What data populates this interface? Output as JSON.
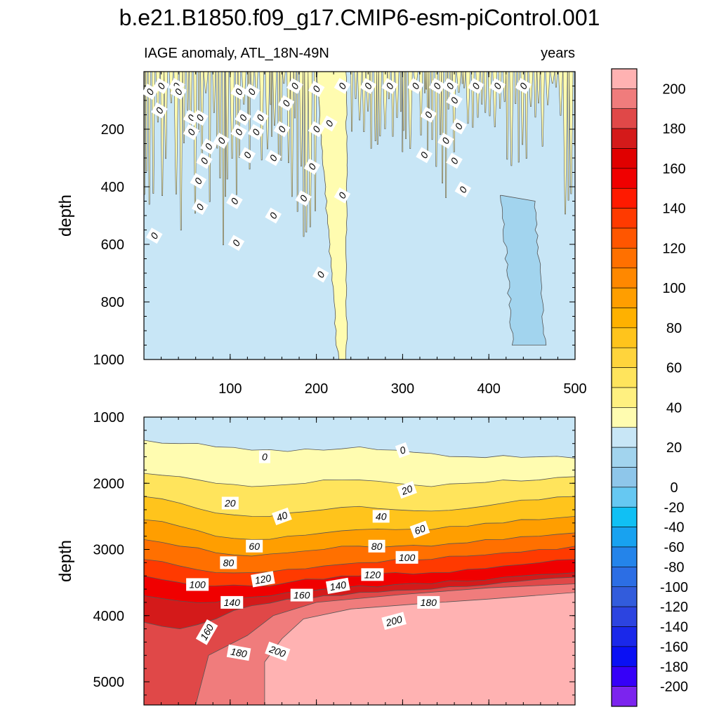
{
  "chart_data": {
    "type": "heatmap",
    "title": "b.e21.B1850.f09_g17.CMIP6-esm-piControl.001",
    "panels": [
      {
        "name": "upper",
        "subtitle_left": "IAGE anomaly, ATL_18N-49N",
        "subtitle_right": "years",
        "xlabel": "",
        "ylabel": "depth",
        "xlim": [
          0,
          500
        ],
        "ylim": [
          1000,
          0
        ],
        "xticks": [
          100,
          200,
          300,
          400,
          500
        ],
        "yticks": [
          200,
          400,
          600,
          800,
          1000
        ],
        "contour_labels": [
          "0",
          "0",
          "0",
          "0",
          "0",
          "0",
          "0",
          "0",
          "0",
          "0",
          "0",
          "0",
          "0",
          "0",
          "0",
          "0",
          "0",
          "0",
          "0",
          "0",
          "0",
          "0",
          "0",
          "0",
          "0",
          "0",
          "0",
          "0",
          "0",
          "0",
          "0",
          "0",
          "0",
          "0",
          "0",
          "0",
          "0",
          "0",
          "0",
          "0",
          "0",
          "0",
          "0",
          "0",
          "0",
          "0",
          "0",
          "0",
          "0",
          "0",
          "0"
        ],
        "deep_plume_range": [
          200,
          235
        ],
        "negative_pocket_range": [
          415,
          465
        ]
      },
      {
        "name": "lower",
        "xlabel": "",
        "ylabel": "depth",
        "xlim": [
          0,
          500
        ],
        "ylim": [
          5350,
          1000
        ],
        "yticks": [
          1000,
          2000,
          3000,
          4000,
          5000
        ],
        "contour_labels": [
          "0",
          "0",
          "20",
          "20",
          "40",
          "40",
          "60",
          "60",
          "80",
          "80",
          "100",
          "100",
          "120",
          "120",
          "140",
          "140",
          "160",
          "160",
          "180",
          "180",
          "200",
          "200"
        ],
        "isolines": [
          {
            "level": 0,
            "depth": [
              1350,
              1400,
              1450,
              1500,
              1520,
              1500,
              1450,
              1500,
              1550,
              1600,
              1580,
              1600,
              1620
            ]
          },
          {
            "level": 20,
            "depth": [
              1850,
              1900,
              2000,
              2050,
              2020,
              1950,
              1950,
              2000,
              2050,
              2000,
              1950,
              1950,
              1900
            ]
          },
          {
            "level": 40,
            "depth": [
              2200,
              2300,
              2450,
              2500,
              2450,
              2400,
              2350,
              2400,
              2420,
              2380,
              2300,
              2250,
              2200
            ]
          },
          {
            "level": 60,
            "depth": [
              2550,
              2650,
              2800,
              2850,
              2800,
              2750,
              2700,
              2700,
              2700,
              2650,
              2600,
              2550,
              2500
            ]
          },
          {
            "level": 80,
            "depth": [
              2850,
              2950,
              3050,
              3100,
              3050,
              3000,
              2950,
              2950,
              2950,
              2900,
              2850,
              2800,
              2750
            ]
          },
          {
            "level": 100,
            "depth": [
              3150,
              3250,
              3350,
              3350,
              3300,
              3250,
              3200,
              3150,
              3150,
              3100,
              3050,
              3000,
              2950
            ]
          },
          {
            "level": 120,
            "depth": [
              3400,
              3500,
              3550,
              3550,
              3500,
              3450,
              3400,
              3350,
              3350,
              3300,
              3250,
              3200,
              3150
            ]
          },
          {
            "level": 140,
            "depth": [
              3700,
              3780,
              3800,
              3720,
              3650,
              3600,
              3550,
              3530,
              3520,
              3480,
              3420,
              3380,
              3350
            ]
          },
          {
            "level": 160,
            "depth": [
              4100,
              4200,
              4050,
              3850,
              3750,
              3700,
              3650,
              3620,
              3600,
              3560,
              3500,
              3450,
              3420
            ]
          }
        ]
      }
    ],
    "colorbar": {
      "labels": [
        "200",
        "180",
        "160",
        "140",
        "120",
        "100",
        "80",
        "60",
        "40",
        "20",
        "0",
        "-20",
        "-40",
        "-60",
        "-80",
        "-100",
        "-120",
        "-140",
        "-160",
        "-180",
        "-200"
      ],
      "colors": [
        "#ffb2b2",
        "#f07c7c",
        "#e04848",
        "#d41a1a",
        "#e00000",
        "#f00000",
        "#ff1a00",
        "#ff3a00",
        "#ff5600",
        "#ff7000",
        "#ff8800",
        "#ff9e00",
        "#ffb100",
        "#ffc41c",
        "#ffd43c",
        "#ffe45c",
        "#fff080",
        "#fffcb0",
        "#c8e6f6",
        "#a2d4ee",
        "#8ec6ea",
        "#66c8f2",
        "#10c0f4",
        "#18a2f0",
        "#2484ea",
        "#2c6ee4",
        "#325cdc",
        "#2c44e0",
        "#1a28ea",
        "#0a10f4",
        "#3600f8",
        "#7c24ee"
      ]
    }
  }
}
